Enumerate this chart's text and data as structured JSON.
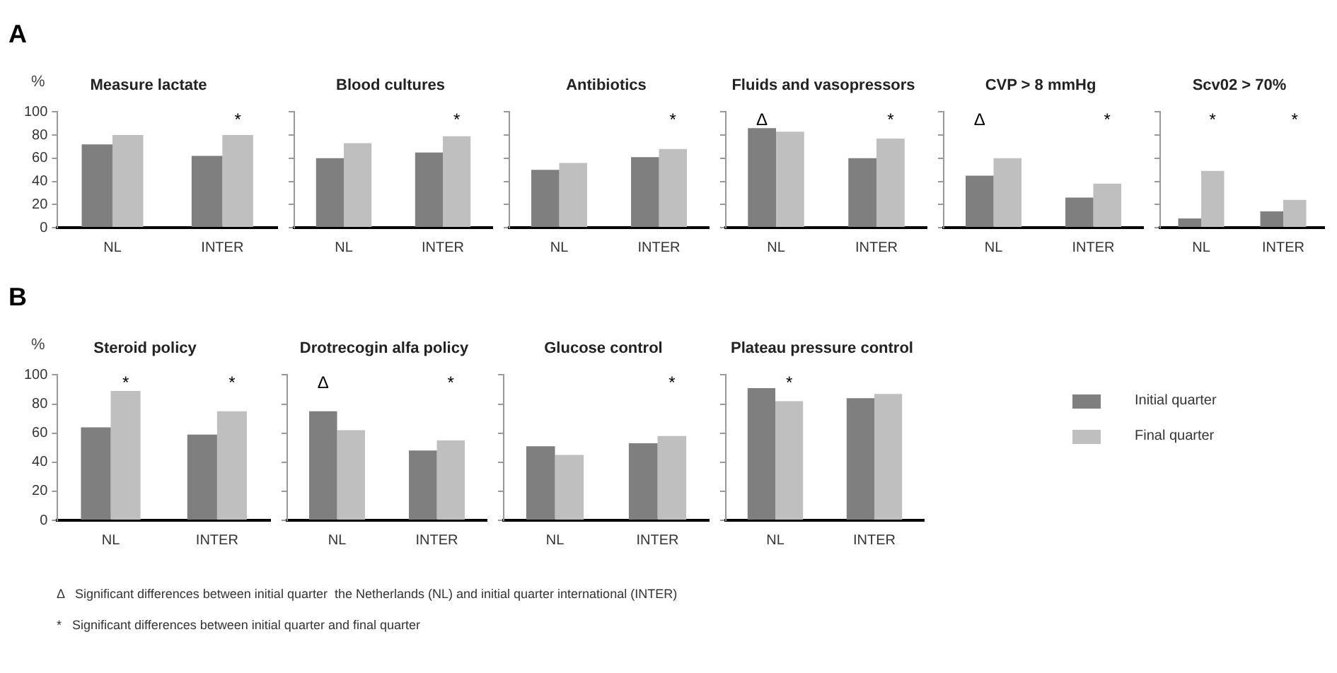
{
  "chart_data": [
    {
      "type": "bar",
      "title": "Measure lactate",
      "ylabel": "%",
      "categories": [
        "NL",
        "INTER"
      ],
      "ylim": [
        0,
        100
      ],
      "yticks": [
        0,
        20,
        40,
        60,
        80,
        100
      ],
      "grid": false,
      "legend": "right",
      "annotations": [
        "A",
        "*"
      ],
      "series": [
        {
          "name": "Initial quarter",
          "color": "#7f7f7f",
          "values": [
            72,
            62
          ]
        },
        {
          "name": "Final quarter",
          "color": "#bfbfbf",
          "values": [
            80,
            80
          ]
        }
      ]
    },
    {
      "type": "bar",
      "title": "Blood cultures",
      "categories": [
        "NL",
        "INTER"
      ],
      "ylim": [
        0,
        100
      ],
      "yticks": [
        0,
        20,
        40,
        60,
        80,
        100
      ],
      "tick_labels": "x",
      "grid": false,
      "annotations": [
        "*"
      ],
      "series": [
        {
          "color": "#7f7f7f",
          "values": [
            60,
            65
          ]
        },
        {
          "color": "#bfbfbf",
          "values": [
            73,
            79
          ]
        }
      ]
    },
    {
      "type": "bar",
      "title": "Antibiotics",
      "categories": [
        "NL",
        "INTER"
      ],
      "ylim": [
        0,
        100
      ],
      "yticks": [
        0,
        20,
        40,
        60,
        80,
        100
      ],
      "tick_labels": "x",
      "grid": false,
      "annotations": [
        "*"
      ],
      "series": [
        {
          "color": "#7f7f7f",
          "values": [
            50,
            61
          ]
        },
        {
          "color": "#bfbfbf",
          "values": [
            56,
            68
          ]
        }
      ]
    },
    {
      "type": "bar",
      "title": "Fluids and vasopressors",
      "categories": [
        "NL",
        "INTER"
      ],
      "ylim": [
        0,
        100
      ],
      "yticks": [
        0,
        20,
        40,
        60,
        80,
        100
      ],
      "tick_labels": "x",
      "grid": false,
      "annotations": [
        "Δ",
        "*"
      ],
      "series": [
        {
          "color": "#7f7f7f",
          "values": [
            86,
            60
          ]
        },
        {
          "color": "#bfbfbf",
          "values": [
            83,
            77
          ]
        }
      ]
    },
    {
      "type": "bar",
      "title": "CVP > 8 mmHg",
      "categories": [
        "NL",
        "INTER"
      ],
      "ylim": [
        0,
        100
      ],
      "yticks": [
        0,
        20,
        40,
        60,
        80,
        100
      ],
      "tick_labels": "x",
      "grid": false,
      "annotations": [
        "Δ",
        "*"
      ],
      "series": [
        {
          "color": "#7f7f7f",
          "values": [
            45,
            26
          ]
        },
        {
          "color": "#bfbfbf",
          "values": [
            60,
            38
          ]
        }
      ]
    },
    {
      "type": "bar",
      "title": "Scv02 > 70%",
      "categories": [
        "NL",
        "INTER"
      ],
      "ylim": [
        0,
        100
      ],
      "yticks": [
        0,
        20,
        40,
        60,
        80,
        100
      ],
      "tick_labels": "x",
      "grid": false,
      "annotations": [
        "*",
        "*"
      ],
      "series": [
        {
          "color": "#7f7f7f",
          "values": [
            8,
            14
          ]
        },
        {
          "color": "#bfbfbf",
          "values": [
            49,
            24
          ]
        }
      ]
    },
    {
      "type": "bar",
      "title": "Steroid policy",
      "ylabel": "%",
      "categories": [
        "NL",
        "INTER"
      ],
      "ylim": [
        0,
        100
      ],
      "yticks": [
        0,
        20,
        40,
        60,
        80,
        100
      ],
      "grid": false,
      "annotations": [
        "B",
        "*",
        "*"
      ],
      "series": [
        {
          "color": "#7f7f7f",
          "values": [
            64,
            59
          ]
        },
        {
          "color": "#bfbfbf",
          "values": [
            89,
            75
          ]
        }
      ]
    },
    {
      "type": "bar",
      "title": "Drotrecogin alfa policy",
      "categories": [
        "NL",
        "INTER"
      ],
      "ylim": [
        0,
        100
      ],
      "yticks": [
        0,
        20,
        40,
        60,
        80,
        100
      ],
      "tick_labels": "x",
      "grid": false,
      "annotations": [
        "Δ",
        "*"
      ],
      "series": [
        {
          "color": "#7f7f7f",
          "values": [
            75,
            48
          ]
        },
        {
          "color": "#bfbfbf",
          "values": [
            62,
            55
          ]
        }
      ]
    },
    {
      "type": "bar",
      "title": "Glucose control",
      "categories": [
        "NL",
        "INTER"
      ],
      "ylim": [
        0,
        100
      ],
      "yticks": [
        0,
        20,
        40,
        60,
        80,
        100
      ],
      "tick_labels": "x",
      "grid": false,
      "annotations": [
        "*"
      ],
      "series": [
        {
          "color": "#7f7f7f",
          "values": [
            51,
            53
          ]
        },
        {
          "color": "#bfbfbf",
          "values": [
            45,
            58
          ]
        }
      ]
    },
    {
      "type": "bar",
      "title": "Plateau pressure control",
      "categories": [
        "NL",
        "INTER"
      ],
      "ylim": [
        0,
        100
      ],
      "yticks": [
        0,
        20,
        40,
        60,
        80,
        100
      ],
      "tick_labels": "x",
      "grid": false,
      "annotations": [
        "*",
        "Δ   Significant differences between initial quarter  the Netherlands (NL) and initial quarter international (INTER)",
        "*   Significant differences between initial quarter and final quarter"
      ],
      "series": [
        {
          "color": "#7f7f7f",
          "values": [
            91,
            84
          ]
        },
        {
          "color": "#bfbfbf",
          "values": [
            82,
            87
          ]
        }
      ]
    }
  ]
}
